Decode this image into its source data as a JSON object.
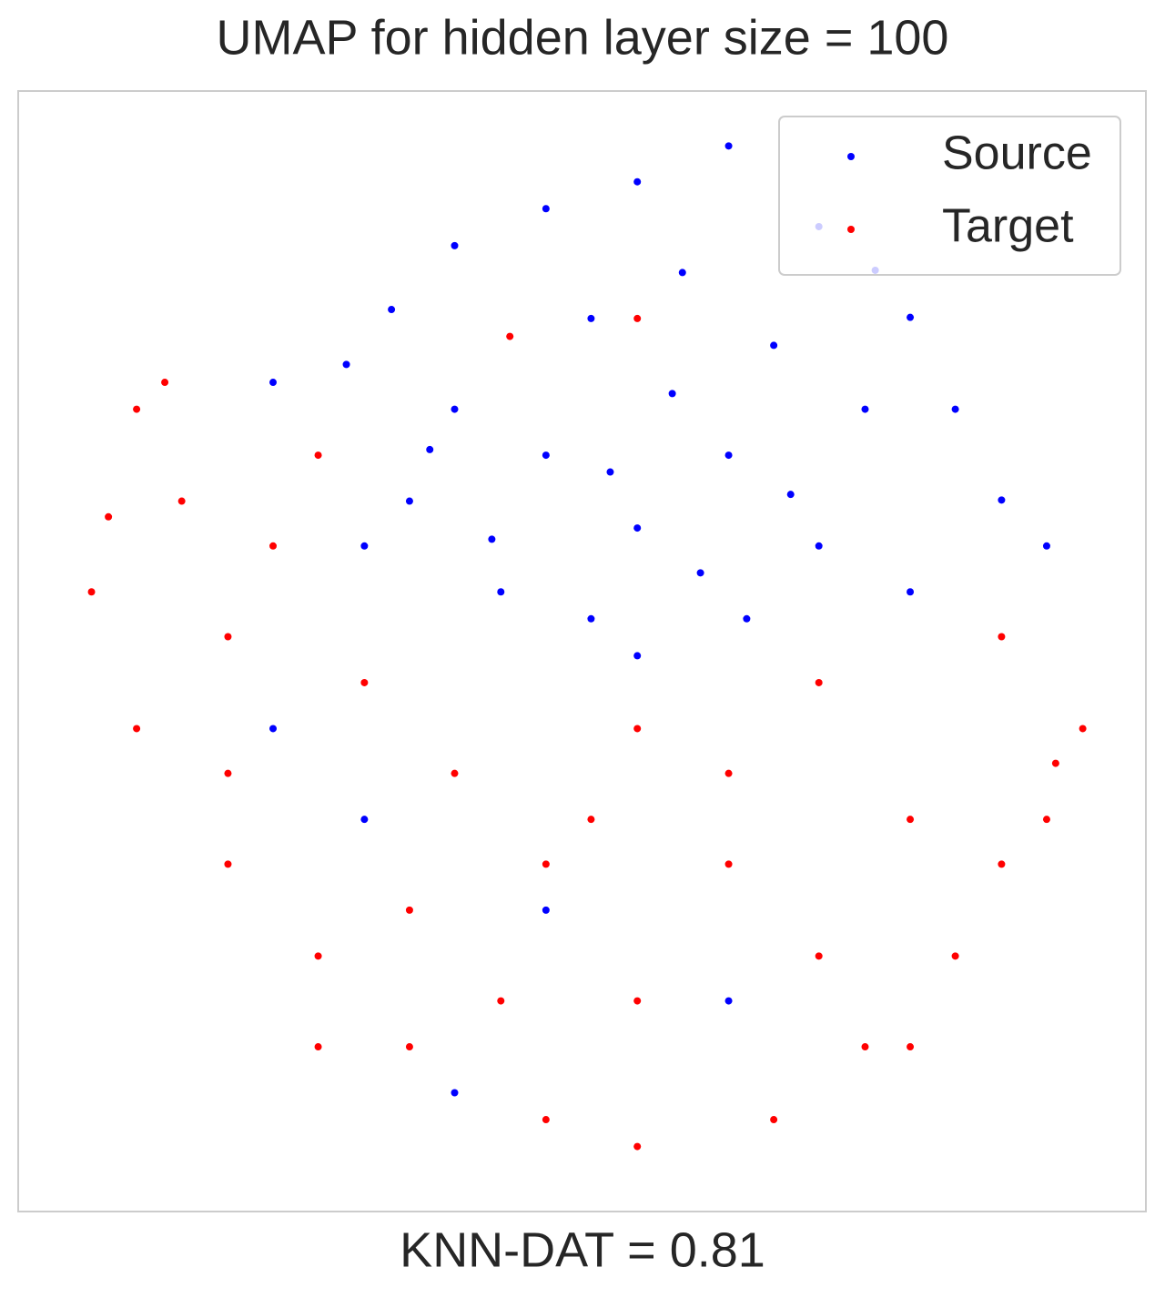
{
  "chart_data": {
    "type": "scatter",
    "title": "UMAP for hidden layer size = 100",
    "x_label": "KNN-DAT = 0.81",
    "xlim": [
      0,
      100
    ],
    "ylim": [
      0,
      100
    ],
    "legend": "upper right",
    "series": [
      {
        "name": "Source",
        "color": "#0000ff",
        "x": [
          63.0,
          54.9,
          46.8,
          38.7,
          33.1,
          29.1,
          71.0,
          79.1,
          83.1,
          87.2,
          91.2,
          54.9,
          46.8,
          38.7,
          34.7,
          42.8,
          63.0,
          71.0,
          79.1,
          50.8,
          58.9,
          67.0,
          75.1,
          30.7,
          22.6,
          50.8,
          64.6,
          54.9,
          30.7,
          46.8,
          63.0,
          38.7,
          22.6,
          58.0,
          42.0,
          68.5,
          76.0,
          36.5,
          52.5,
          60.5
        ],
        "y": [
          95.1,
          91.9,
          89.5,
          86.2,
          80.5,
          75.6,
          87.9,
          79.8,
          71.6,
          63.5,
          59.4,
          61.0,
          67.5,
          71.6,
          63.4,
          55.3,
          67.5,
          59.4,
          55.3,
          79.7,
          83.8,
          77.3,
          71.6,
          59.4,
          74.0,
          52.9,
          52.9,
          49.6,
          35.0,
          26.9,
          18.8,
          10.6,
          43.1,
          73.0,
          60.0,
          64.0,
          84.0,
          68.0,
          66.0,
          57.0
        ]
      },
      {
        "name": "Target",
        "color": "#ff0000",
        "x": [
          6.5,
          10.5,
          14.5,
          18.6,
          10.5,
          18.6,
          26.6,
          34.7,
          46.8,
          54.9,
          67.0,
          75.1,
          83.1,
          91.2,
          94.4,
          87.2,
          71.0,
          54.9,
          38.7,
          46.8,
          63.0,
          79.1,
          30.7,
          22.6,
          13.0,
          26.6,
          54.9,
          71.0,
          42.8,
          87.2,
          63.0,
          34.7,
          18.6,
          79.1,
          50.8,
          26.6,
          54.9,
          43.6,
          8.0,
          92.0
        ],
        "y": [
          55.3,
          71.6,
          63.4,
          51.3,
          43.1,
          31.0,
          22.8,
          14.7,
          8.2,
          5.8,
          8.2,
          14.7,
          22.8,
          35.0,
          43.1,
          51.3,
          47.2,
          43.1,
          39.1,
          31.0,
          31.0,
          35.0,
          47.2,
          59.4,
          74.0,
          14.7,
          18.8,
          22.8,
          18.8,
          31.0,
          39.1,
          26.9,
          39.1,
          14.7,
          35.0,
          67.5,
          79.7,
          78.1,
          62.0,
          40.0
        ]
      }
    ]
  }
}
